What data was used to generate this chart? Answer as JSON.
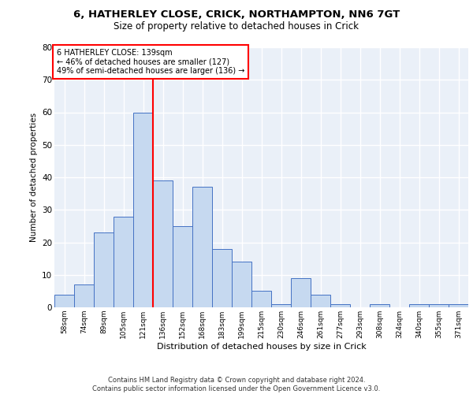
{
  "title1": "6, HATHERLEY CLOSE, CRICK, NORTHAMPTON, NN6 7GT",
  "title2": "Size of property relative to detached houses in Crick",
  "xlabel": "Distribution of detached houses by size in Crick",
  "ylabel": "Number of detached properties",
  "footer": "Contains HM Land Registry data © Crown copyright and database right 2024.\nContains public sector information licensed under the Open Government Licence v3.0.",
  "bin_labels": [
    "58sqm",
    "74sqm",
    "89sqm",
    "105sqm",
    "121sqm",
    "136sqm",
    "152sqm",
    "168sqm",
    "183sqm",
    "199sqm",
    "215sqm",
    "230sqm",
    "246sqm",
    "261sqm",
    "277sqm",
    "293sqm",
    "308sqm",
    "324sqm",
    "340sqm",
    "355sqm",
    "371sqm"
  ],
  "bar_heights": [
    4,
    7,
    23,
    28,
    60,
    39,
    25,
    37,
    18,
    14,
    5,
    1,
    9,
    4,
    1,
    0,
    1,
    0,
    1,
    1,
    1
  ],
  "bar_color": "#c6d9f0",
  "bar_edge_color": "#4472c4",
  "vline_x_index": 5,
  "annotation_title": "6 HATHERLEY CLOSE: 139sqm",
  "annotation_line1": "← 46% of detached houses are smaller (127)",
  "annotation_line2": "49% of semi-detached houses are larger (136) →",
  "annotation_box_color": "white",
  "annotation_box_edge": "red",
  "vline_color": "red",
  "ylim": [
    0,
    80
  ],
  "yticks": [
    0,
    10,
    20,
    30,
    40,
    50,
    60,
    70,
    80
  ],
  "background_color": "#eaf0f8",
  "grid_color": "white"
}
